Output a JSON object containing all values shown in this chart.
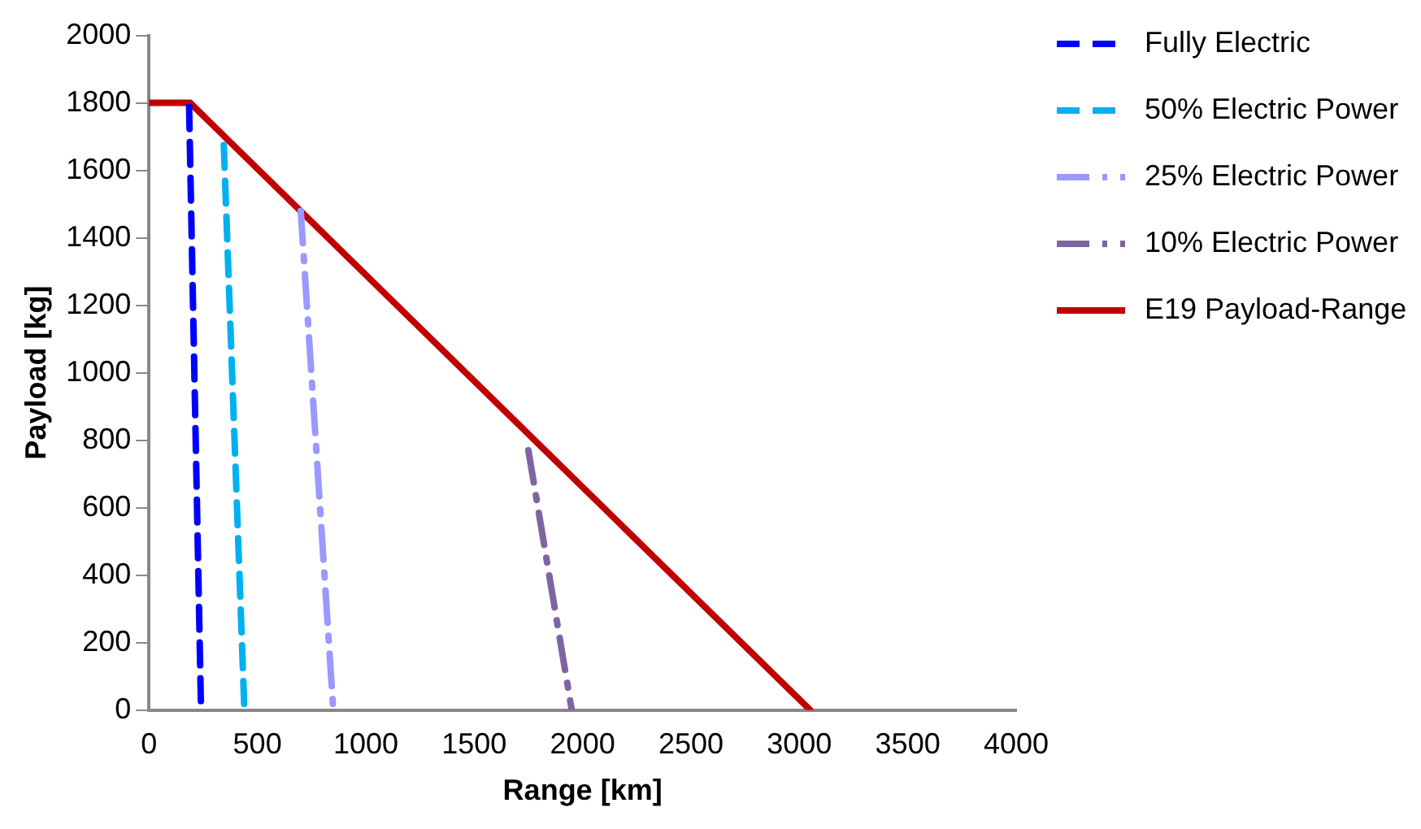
{
  "chart_data": {
    "type": "line",
    "xlabel": "Range [km]",
    "ylabel": "Payload [kg]",
    "xlim": [
      0,
      4000
    ],
    "xticks": [
      0,
      500,
      1000,
      1500,
      2000,
      2500,
      3000,
      3500,
      4000
    ],
    "ylim": [
      0,
      2000
    ],
    "yticks": [
      0,
      200,
      400,
      600,
      800,
      1000,
      1200,
      1400,
      1600,
      1800,
      2000
    ],
    "grid": false,
    "legend": "right",
    "marker": "none",
    "series": [
      {
        "name": "Fully Electric",
        "color": "#0000ff",
        "line_style": "dashed",
        "x": [
          185,
          240
        ],
        "values": [
          1790,
          0
        ]
      },
      {
        "name": "50% Electric Power",
        "color": "#00b0f0",
        "line_style": "dashed",
        "x": [
          345,
          440
        ],
        "values": [
          1675,
          0
        ]
      },
      {
        "name": "25% Electric Power",
        "color": "#9999ff",
        "line_style": "dashdot",
        "x": [
          700,
          850
        ],
        "values": [
          1480,
          0
        ]
      },
      {
        "name": "10% Electric Power",
        "color": "#8064a2",
        "line_style": "dashdot",
        "x": [
          1750,
          1950
        ],
        "values": [
          770,
          0
        ]
      },
      {
        "name": "E19 Payload-Range",
        "color": "#c00000",
        "line_style": "solid",
        "x": [
          0,
          190,
          3050
        ],
        "values": [
          1800,
          1800,
          0
        ]
      }
    ]
  }
}
